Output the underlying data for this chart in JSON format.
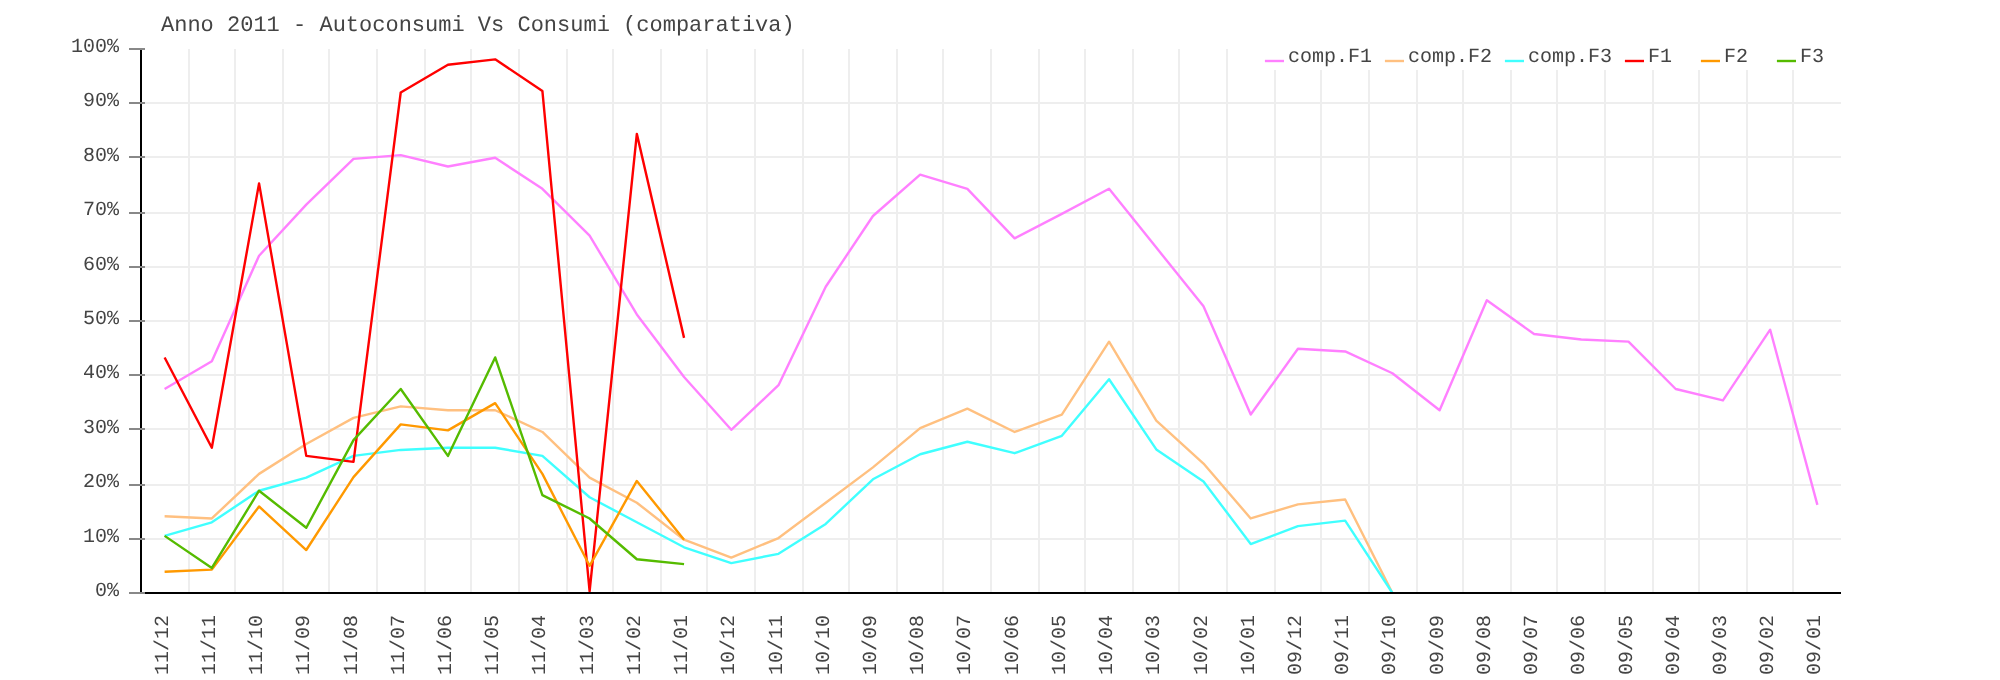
{
  "chart_data": {
    "type": "line",
    "title": "Anno 2011 - Autoconsumi Vs Consumi (comparativa)",
    "categories": [
      "11/12",
      "11/11",
      "11/10",
      "11/09",
      "11/08",
      "11/07",
      "11/06",
      "11/05",
      "11/04",
      "11/03",
      "11/02",
      "11/01",
      "10/12",
      "10/11",
      "10/10",
      "10/09",
      "10/08",
      "10/07",
      "10/06",
      "10/05",
      "10/04",
      "10/03",
      "10/02",
      "10/01",
      "09/12",
      "09/11",
      "09/10",
      "09/09",
      "09/08",
      "09/07",
      "09/06",
      "09/05",
      "09/04",
      "09/03",
      "09/02",
      "09/01"
    ],
    "series": [
      {
        "name": "comp.F1",
        "color": "#ff80ff",
        "values": [
          37.5,
          42.6,
          62,
          71.4,
          79.8,
          80.5,
          78.4,
          80,
          74.3,
          65.7,
          51.2,
          39.7,
          30,
          38.2,
          56.3,
          69.3,
          76.9,
          74.3,
          65.2,
          69.7,
          74.3,
          63.5,
          52.7,
          32.8,
          44.9,
          44.4,
          40.4,
          33.6,
          53.8,
          47.6,
          46.6,
          46.2,
          37.5,
          35.4,
          48.4,
          16.2
        ]
      },
      {
        "name": "comp.F2",
        "color": "#ffc080",
        "values": [
          14.1,
          13.7,
          21.9,
          27.4,
          32.2,
          34.3,
          33.6,
          33.6,
          29.6,
          21.2,
          16.6,
          9.8,
          6.5,
          10.1,
          16.6,
          23.1,
          30.3,
          33.9,
          29.6,
          32.8,
          46.2,
          31.7,
          23.8,
          13.7,
          16.3,
          17.2,
          0,
          null,
          null,
          null,
          null,
          null,
          null,
          null,
          null,
          null
        ]
      },
      {
        "name": "comp.F3",
        "color": "#40ffff",
        "values": [
          10.5,
          13,
          18.8,
          21.2,
          25.2,
          26.3,
          26.7,
          26.7,
          25.2,
          17.6,
          13,
          8.4,
          5.5,
          7.2,
          12.7,
          20.9,
          25.5,
          27.8,
          25.7,
          28.9,
          39.3,
          26.4,
          20.5,
          9,
          12.3,
          13.3,
          0,
          null,
          null,
          null,
          null,
          null,
          null,
          null,
          null,
          null
        ]
      },
      {
        "name": "F1",
        "color": "#ff0000",
        "values": [
          43.3,
          26.7,
          75.3,
          25.2,
          24.1,
          92,
          97.1,
          98.1,
          92.3,
          0.3,
          84.4,
          46.9,
          null,
          null,
          null,
          null,
          null,
          null,
          null,
          null,
          null,
          null,
          null,
          null,
          null,
          null,
          null,
          null,
          null,
          null,
          null,
          null,
          null,
          null,
          null,
          null
        ]
      },
      {
        "name": "F2",
        "color": "#ff9900",
        "values": [
          3.9,
          4.3,
          15.9,
          7.9,
          21.3,
          31,
          29.9,
          34.9,
          21.9,
          5,
          20.6,
          9.8,
          null,
          null,
          null,
          null,
          null,
          null,
          null,
          null,
          null,
          null,
          null,
          null,
          null,
          null,
          null,
          null,
          null,
          null,
          null,
          null,
          null,
          null,
          null,
          null
        ]
      },
      {
        "name": "F3",
        "color": "#55bb00",
        "values": [
          10.5,
          4.6,
          18.8,
          12,
          28.1,
          37.5,
          25.2,
          43.3,
          18,
          13.7,
          6.2,
          5.3,
          null,
          null,
          null,
          null,
          null,
          null,
          null,
          null,
          null,
          null,
          null,
          null,
          null,
          null,
          null,
          null,
          null,
          null,
          null,
          null,
          null,
          null,
          null,
          null
        ]
      }
    ],
    "ylim": [
      0,
      100
    ],
    "yticks": [
      {
        "value": 0,
        "label": "0%"
      },
      {
        "value": 10,
        "label": "10%"
      },
      {
        "value": 20,
        "label": "20%"
      },
      {
        "value": 30,
        "label": "30%"
      },
      {
        "value": 40,
        "label": "40%"
      },
      {
        "value": 50,
        "label": "50%"
      },
      {
        "value": 60,
        "label": "60%"
      },
      {
        "value": 70,
        "label": "70%"
      },
      {
        "value": 80,
        "label": "80%"
      },
      {
        "value": 90,
        "label": "90%"
      },
      {
        "value": 100,
        "label": "100%"
      }
    ],
    "grid": true,
    "legend": "top right",
    "marker": "none",
    "line_style": "solid"
  }
}
